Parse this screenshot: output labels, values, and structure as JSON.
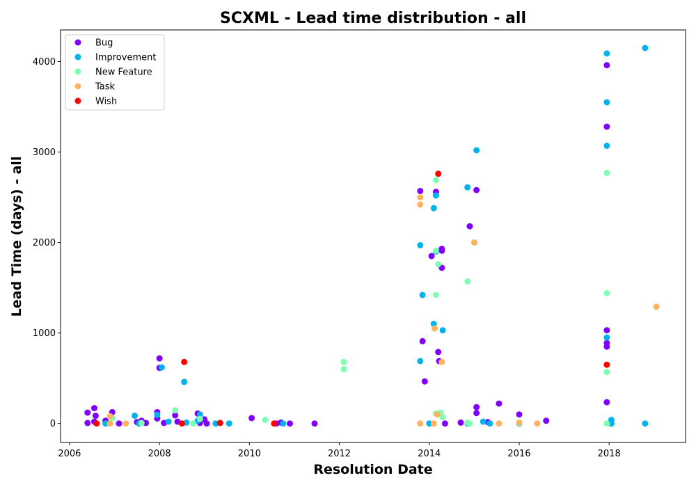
{
  "chart_data": {
    "type": "scatter",
    "title": "SCXML - Lead time distribution - all",
    "xlabel": "Resolution Date",
    "ylabel": "Lead Time (days) - all",
    "xlim": [
      2005.8,
      2019.7
    ],
    "ylim": [
      -210,
      4350
    ],
    "x_ticks": [
      2006,
      2008,
      2010,
      2012,
      2014,
      2016,
      2018
    ],
    "x_tick_labels": [
      "2006",
      "2008",
      "2010",
      "2012",
      "2014",
      "2016",
      "2018"
    ],
    "y_ticks": [
      0,
      1000,
      2000,
      3000,
      4000
    ],
    "y_tick_labels": [
      "0",
      "1000",
      "2000",
      "3000",
      "4000"
    ],
    "grid": false,
    "legend_position": "top-left",
    "series": [
      {
        "name": "Bug",
        "color": "#8000ff",
        "points": [
          [
            2006.4,
            120
          ],
          [
            2006.4,
            5
          ],
          [
            2006.55,
            170
          ],
          [
            2006.58,
            85
          ],
          [
            2006.55,
            20
          ],
          [
            2006.8,
            30
          ],
          [
            2006.95,
            125
          ],
          [
            2007.1,
            0
          ],
          [
            2007.5,
            15
          ],
          [
            2007.6,
            30
          ],
          [
            2007.7,
            5
          ],
          [
            2007.95,
            125
          ],
          [
            2007.95,
            55
          ],
          [
            2008.0,
            720
          ],
          [
            2008.0,
            615
          ],
          [
            2008.1,
            5
          ],
          [
            2008.35,
            90
          ],
          [
            2008.4,
            20
          ],
          [
            2008.85,
            110
          ],
          [
            2008.9,
            5
          ],
          [
            2009.0,
            45
          ],
          [
            2009.05,
            0
          ],
          [
            2010.05,
            60
          ],
          [
            2010.6,
            0
          ],
          [
            2010.7,
            10
          ],
          [
            2010.9,
            0
          ],
          [
            2011.45,
            0
          ],
          [
            2013.8,
            2570
          ],
          [
            2013.85,
            910
          ],
          [
            2013.9,
            465
          ],
          [
            2014.05,
            1850
          ],
          [
            2014.15,
            2560
          ],
          [
            2014.2,
            790
          ],
          [
            2014.22,
            690
          ],
          [
            2014.28,
            1930
          ],
          [
            2014.28,
            1910
          ],
          [
            2014.28,
            1720
          ],
          [
            2014.35,
            0
          ],
          [
            2014.7,
            10
          ],
          [
            2014.9,
            2180
          ],
          [
            2015.05,
            2580
          ],
          [
            2015.05,
            180
          ],
          [
            2015.05,
            115
          ],
          [
            2015.3,
            15
          ],
          [
            2015.55,
            220
          ],
          [
            2016.0,
            100
          ],
          [
            2016.6,
            30
          ],
          [
            2017.95,
            3960
          ],
          [
            2017.95,
            3280
          ],
          [
            2017.95,
            1030
          ],
          [
            2017.95,
            890
          ],
          [
            2017.95,
            850
          ],
          [
            2017.95,
            235
          ]
        ]
      },
      {
        "name": "Improvement",
        "color": "#00b4eb",
        "points": [
          [
            2006.8,
            0
          ],
          [
            2007.45,
            85
          ],
          [
            2007.55,
            0
          ],
          [
            2007.95,
            95
          ],
          [
            2008.05,
            620
          ],
          [
            2008.2,
            20
          ],
          [
            2008.55,
            460
          ],
          [
            2008.6,
            10
          ],
          [
            2008.9,
            100
          ],
          [
            2008.85,
            30
          ],
          [
            2009.25,
            0
          ],
          [
            2009.55,
            0
          ],
          [
            2010.75,
            0
          ],
          [
            2013.8,
            1970
          ],
          [
            2013.8,
            690
          ],
          [
            2013.85,
            1420
          ],
          [
            2014.0,
            0
          ],
          [
            2014.1,
            2380
          ],
          [
            2014.1,
            1100
          ],
          [
            2014.15,
            2520
          ],
          [
            2014.15,
            1900
          ],
          [
            2014.3,
            1030
          ],
          [
            2014.85,
            2610
          ],
          [
            2014.85,
            0
          ],
          [
            2015.05,
            3020
          ],
          [
            2015.2,
            20
          ],
          [
            2015.35,
            0
          ],
          [
            2016.0,
            0
          ],
          [
            2017.95,
            4090
          ],
          [
            2017.95,
            3550
          ],
          [
            2017.95,
            3070
          ],
          [
            2017.95,
            950
          ],
          [
            2018.05,
            40
          ],
          [
            2018.05,
            0
          ],
          [
            2018.8,
            4150
          ],
          [
            2018.8,
            0
          ]
        ]
      },
      {
        "name": "New Feature",
        "color": "#80ffb4",
        "points": [
          [
            2006.95,
            60
          ],
          [
            2007.6,
            5
          ],
          [
            2008.35,
            145
          ],
          [
            2008.75,
            0
          ],
          [
            2008.9,
            50
          ],
          [
            2010.35,
            40
          ],
          [
            2012.1,
            680
          ],
          [
            2012.1,
            600
          ],
          [
            2014.15,
            2690
          ],
          [
            2014.15,
            1910
          ],
          [
            2014.15,
            1420
          ],
          [
            2014.2,
            1760
          ],
          [
            2014.15,
            110
          ],
          [
            2014.25,
            120
          ],
          [
            2014.3,
            70
          ],
          [
            2014.85,
            1570
          ],
          [
            2014.85,
            10
          ],
          [
            2014.9,
            0
          ],
          [
            2016.0,
            5
          ],
          [
            2017.95,
            2770
          ],
          [
            2017.95,
            1440
          ],
          [
            2017.95,
            570
          ],
          [
            2017.95,
            0
          ]
        ]
      },
      {
        "name": "Task",
        "color": "#ffb360",
        "points": [
          [
            2006.9,
            80
          ],
          [
            2006.9,
            0
          ],
          [
            2007.25,
            0
          ],
          [
            2013.8,
            2500
          ],
          [
            2013.8,
            2420
          ],
          [
            2013.8,
            0
          ],
          [
            2014.1,
            0
          ],
          [
            2014.12,
            1050
          ],
          [
            2014.18,
            100
          ],
          [
            2014.28,
            680
          ],
          [
            2015.0,
            2000
          ],
          [
            2015.55,
            0
          ],
          [
            2016.0,
            10
          ],
          [
            2016.4,
            0
          ],
          [
            2019.05,
            1290
          ]
        ]
      },
      {
        "name": "Wish",
        "color": "#ff0000",
        "points": [
          [
            2006.6,
            0
          ],
          [
            2008.5,
            0
          ],
          [
            2008.55,
            680
          ],
          [
            2009.35,
            5
          ],
          [
            2010.55,
            0
          ],
          [
            2014.2,
            2760
          ],
          [
            2017.95,
            650
          ]
        ]
      }
    ]
  }
}
